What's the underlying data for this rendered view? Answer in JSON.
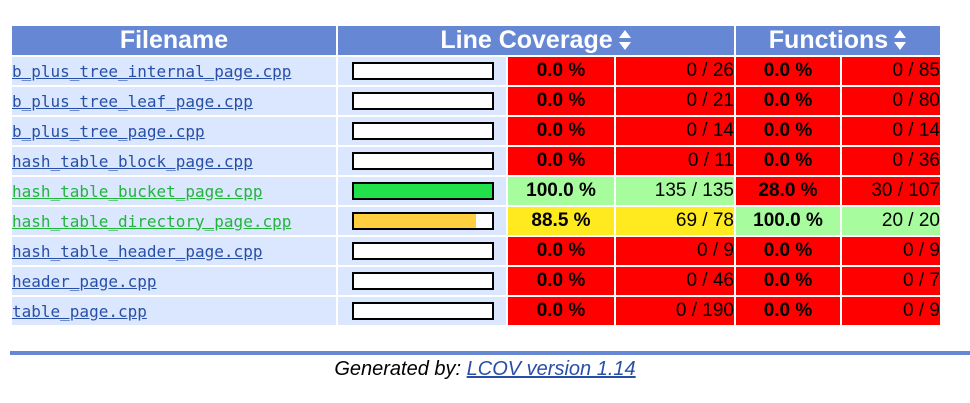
{
  "colors": {
    "header_bg": "#6688d4",
    "row_bg": "#dae7fe",
    "low": "#ff0000",
    "med": "#ffea20",
    "hi": "#a7fc9d",
    "bar_hi": "#22e04a",
    "bar_med": "#ffcf3f",
    "link_default": "#284fa8",
    "link_hi": "#21b53a"
  },
  "headers": {
    "filename": "Filename",
    "line_coverage": "Line Coverage",
    "functions": "Functions"
  },
  "rows": [
    {
      "file": "b_plus_tree_internal_page.cpp",
      "line_pct": "0.0 %",
      "line_count": "0 / 26",
      "func_pct": "0.0 %",
      "func_count": "0 / 85",
      "coverage_fraction": 0.0,
      "line_level": "low",
      "func_level": "low"
    },
    {
      "file": "b_plus_tree_leaf_page.cpp",
      "line_pct": "0.0 %",
      "line_count": "0 / 21",
      "func_pct": "0.0 %",
      "func_count": "0 / 80",
      "coverage_fraction": 0.0,
      "line_level": "low",
      "func_level": "low"
    },
    {
      "file": "b_plus_tree_page.cpp",
      "line_pct": "0.0 %",
      "line_count": "0 / 14",
      "func_pct": "0.0 %",
      "func_count": "0 / 14",
      "coverage_fraction": 0.0,
      "line_level": "low",
      "func_level": "low"
    },
    {
      "file": "hash_table_block_page.cpp",
      "line_pct": "0.0 %",
      "line_count": "0 / 11",
      "func_pct": "0.0 %",
      "func_count": "0 / 36",
      "coverage_fraction": 0.0,
      "line_level": "low",
      "func_level": "low"
    },
    {
      "file": "hash_table_bucket_page.cpp",
      "line_pct": "100.0 %",
      "line_count": "135 / 135",
      "func_pct": "28.0 %",
      "func_count": "30 / 107",
      "coverage_fraction": 1.0,
      "line_level": "hi",
      "func_level": "low"
    },
    {
      "file": "hash_table_directory_page.cpp",
      "line_pct": "88.5 %",
      "line_count": "69 / 78",
      "func_pct": "100.0 %",
      "func_count": "20 / 20",
      "coverage_fraction": 0.885,
      "line_level": "med",
      "func_level": "hi"
    },
    {
      "file": "hash_table_header_page.cpp",
      "line_pct": "0.0 %",
      "line_count": "0 / 9",
      "func_pct": "0.0 %",
      "func_count": "0 / 9",
      "coverage_fraction": 0.0,
      "line_level": "low",
      "func_level": "low"
    },
    {
      "file": "header_page.cpp",
      "line_pct": "0.0 %",
      "line_count": "0 / 46",
      "func_pct": "0.0 %",
      "func_count": "0 / 7",
      "coverage_fraction": 0.0,
      "line_level": "low",
      "func_level": "low"
    },
    {
      "file": "table_page.cpp",
      "line_pct": "0.0 %",
      "line_count": "0 / 190",
      "func_pct": "0.0 %",
      "func_count": "0 / 9",
      "coverage_fraction": 0.0,
      "line_level": "low",
      "func_level": "low"
    }
  ],
  "footer": {
    "prefix": "Generated by: ",
    "link_text": "LCOV version 1.14"
  }
}
